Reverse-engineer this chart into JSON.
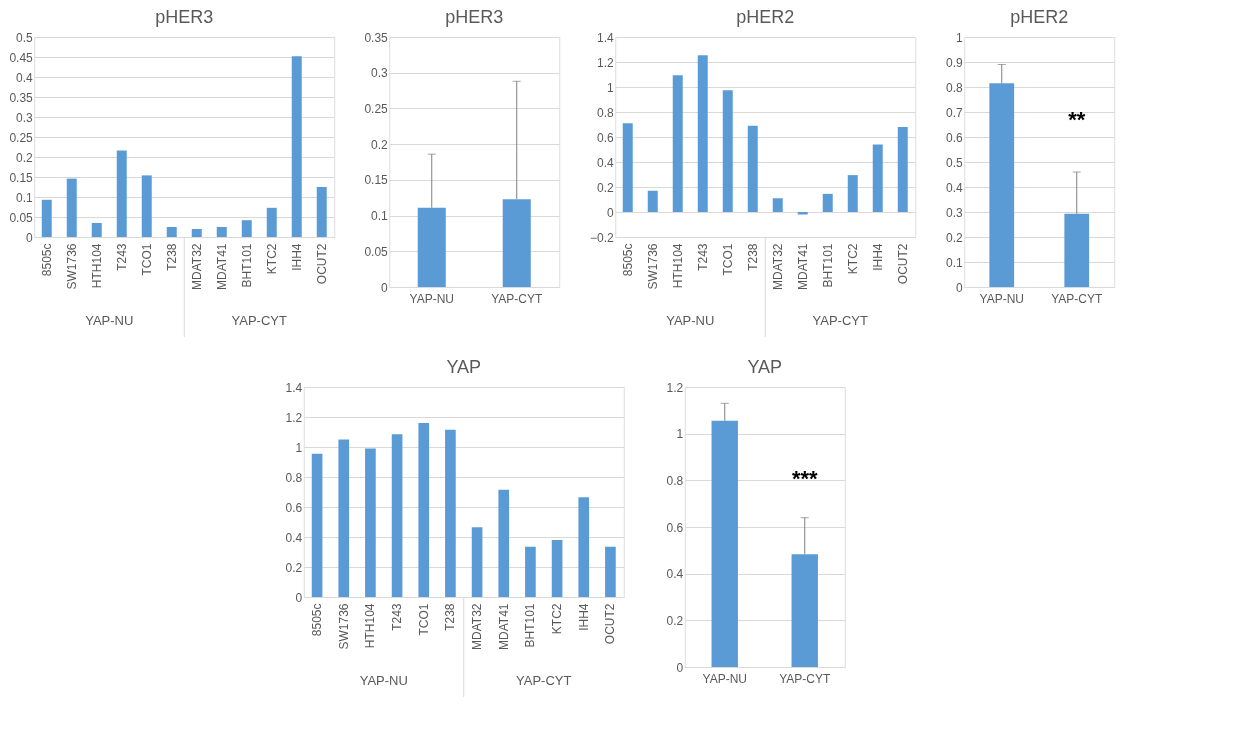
{
  "chart_data": [
    {
      "type": "bar",
      "title": "pHER3",
      "categories": [
        "8505c",
        "SW1736",
        "HTH104",
        "T243",
        "TCO1",
        "T238",
        "MDAT32",
        "MDAT41",
        "BHT101",
        "KTC2",
        "IHH4",
        "OCUT2"
      ],
      "series": [
        {
          "color": "#5b9bd5",
          "values": [
            0.093,
            0.146,
            0.035,
            0.216,
            0.154,
            0.025,
            0.02,
            0.025,
            0.042,
            0.073,
            0.452,
            0.125
          ]
        }
      ],
      "ylim": [
        0,
        0.5
      ],
      "yticks": [
        0,
        0.05,
        0.1,
        0.15,
        0.2,
        0.25,
        0.3,
        0.35,
        0.4,
        0.45,
        0.5
      ],
      "grid": "y",
      "annotations": [
        "YAP-NU",
        "YAP-CYT"
      ]
    },
    {
      "type": "bar",
      "title": "pHER3",
      "categories": [
        "YAP-NU",
        "YAP-CYT"
      ],
      "series": [
        {
          "color": "#5b9bd5",
          "values": [
            0.111,
            0.123
          ],
          "errors": [
            [
              0.111,
              0.186
            ],
            [
              0.123,
              0.288
            ]
          ]
        }
      ],
      "ylim": [
        0,
        0.35
      ],
      "yticks": [
        0,
        0.05,
        0.1,
        0.15,
        0.2,
        0.25,
        0.3,
        0.35
      ],
      "grid": "y"
    },
    {
      "type": "bar",
      "title": "pHER2",
      "categories": [
        "8505c",
        "SW1736",
        "HTH104",
        "T243",
        "TCO1",
        "T238",
        "MDAT32",
        "MDAT41",
        "BHT101",
        "KTC2",
        "IHH4",
        "OCUT2"
      ],
      "series": [
        {
          "color": "#5b9bd5",
          "values": [
            0.71,
            0.17,
            1.095,
            1.255,
            0.975,
            0.69,
            0.11,
            -0.02,
            0.145,
            0.295,
            0.54,
            0.68
          ]
        }
      ],
      "ylim": [
        -0.2,
        1.4
      ],
      "yticks": [
        -0.2,
        0,
        0.2,
        0.4,
        0.6,
        0.8,
        1,
        1.2,
        1.4
      ],
      "grid": "y",
      "annotations": [
        "YAP-NU",
        "YAP-CYT"
      ]
    },
    {
      "type": "bar",
      "title": "pHER2",
      "categories": [
        "YAP-NU",
        "YAP-CYT"
      ],
      "series": [
        {
          "color": "#5b9bd5",
          "values": [
            0.815,
            0.293
          ],
          "errors": [
            [
              0.815,
              0.89
            ],
            [
              0.293,
              0.46
            ]
          ]
        }
      ],
      "ylim": [
        0,
        1
      ],
      "yticks": [
        0,
        0.1,
        0.2,
        0.3,
        0.4,
        0.5,
        0.6,
        0.7,
        0.8,
        0.9,
        1
      ],
      "grid": "y",
      "annotations": [
        "**"
      ]
    },
    {
      "type": "bar",
      "title": "YAP",
      "categories": [
        "8505c",
        "SW1736",
        "HTH104",
        "T243",
        "TCO1",
        "T238",
        "MDAT32",
        "MDAT41",
        "BHT101",
        "KTC2",
        "IHH4",
        "OCUT2"
      ],
      "series": [
        {
          "color": "#5b9bd5",
          "values": [
            0.955,
            1.05,
            0.99,
            1.085,
            1.16,
            1.115,
            0.465,
            0.715,
            0.335,
            0.38,
            0.665,
            0.335
          ]
        }
      ],
      "ylim": [
        0,
        1.4
      ],
      "yticks": [
        0,
        0.2,
        0.4,
        0.6,
        0.8,
        1,
        1.2,
        1.4
      ],
      "grid": "y",
      "annotations": [
        "YAP-NU",
        "YAP-CYT"
      ]
    },
    {
      "type": "bar",
      "title": "YAP",
      "categories": [
        "YAP-NU",
        "YAP-CYT"
      ],
      "series": [
        {
          "color": "#5b9bd5",
          "values": [
            1.055,
            0.483
          ],
          "errors": [
            [
              1.055,
              1.13
            ],
            [
              0.483,
              0.64
            ]
          ]
        }
      ],
      "ylim": [
        0,
        1.2
      ],
      "yticks": [
        0,
        0.2,
        0.4,
        0.6,
        0.8,
        1,
        1.2
      ],
      "grid": "y",
      "annotations": [
        "***"
      ]
    }
  ]
}
